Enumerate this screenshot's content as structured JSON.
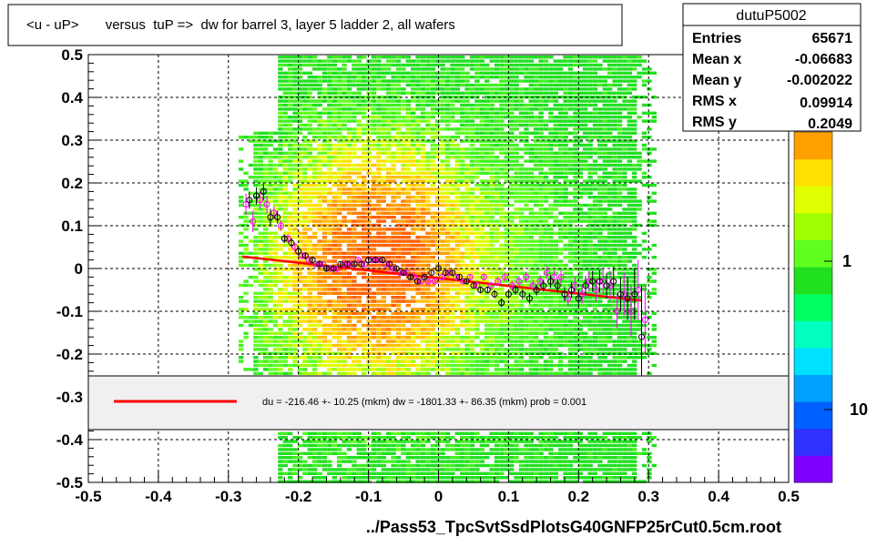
{
  "chart_data": {
    "type": "scatter",
    "title": "<u - uP>       versus  tuP =>  dw for barrel 3, layer 5 ladder 2, all wafers",
    "xlabel": "../Pass53_TpcSvtSsdPlotsG40GNFP25rCut0.5cm.root",
    "ylabel": "",
    "xlim": [
      -0.5,
      0.5
    ],
    "ylim": [
      -0.5,
      0.5
    ],
    "x_ticks": [
      "-0.5",
      "-0.4",
      "-0.3",
      "-0.2",
      "-0.1",
      "0",
      "0.1",
      "0.2",
      "0.3",
      "0.4",
      "0.5"
    ],
    "y_ticks": [
      "-0.5",
      "-0.4",
      "-0.3",
      "-0.2",
      "-0.1",
      "0",
      "0.1",
      "0.2",
      "0.3",
      "0.4",
      "0.5"
    ],
    "grid": true,
    "colorbar": {
      "scale": "log",
      "tick_labels": [
        "1",
        "10"
      ],
      "colors": [
        "#8000ff",
        "#3030ff",
        "#0060ff",
        "#00a0ff",
        "#00e0ff",
        "#00ffc0",
        "#00ff60",
        "#20e020",
        "#60ff20",
        "#a0ff00",
        "#e0ff00",
        "#ffe000",
        "#ffa000"
      ]
    },
    "stats": {
      "name": "dutuP5002",
      "rows": [
        {
          "label": "Entries",
          "value": "65671"
        },
        {
          "label": "Mean x",
          "value": "-0.06683"
        },
        {
          "label": "Mean y",
          "value": "-0.002022"
        },
        {
          "label": "RMS x",
          "value": "0.09914"
        },
        {
          "label": "RMS y",
          "value": "0.2049"
        }
      ]
    },
    "legend": {
      "text": "du = -216.46 +- 10.25 (mkm) dw = -1801.33 +- 86.35 (mkm) prob = 0.001",
      "line_color": "#ff0000"
    },
    "fit_line": {
      "x": [
        -0.28,
        0.29
      ],
      "y": [
        0.028,
        -0.075
      ],
      "color": "#ff0000"
    },
    "profile_black": {
      "x": [
        -0.27,
        -0.26,
        -0.25,
        -0.24,
        -0.23,
        -0.22,
        -0.21,
        -0.2,
        -0.19,
        -0.18,
        -0.17,
        -0.16,
        -0.15,
        -0.14,
        -0.13,
        -0.12,
        -0.11,
        -0.1,
        -0.09,
        -0.08,
        -0.07,
        -0.06,
        -0.05,
        -0.04,
        -0.03,
        -0.02,
        -0.01,
        0.0,
        0.01,
        0.02,
        0.03,
        0.04,
        0.05,
        0.06,
        0.07,
        0.08,
        0.09,
        0.1,
        0.11,
        0.12,
        0.13,
        0.14,
        0.15,
        0.16,
        0.17,
        0.18,
        0.19,
        0.2,
        0.21,
        0.22,
        0.23,
        0.24,
        0.25,
        0.26,
        0.27,
        0.28,
        0.29
      ],
      "y": [
        0.16,
        0.17,
        0.18,
        0.12,
        0.12,
        0.07,
        0.06,
        0.04,
        0.03,
        0.02,
        0.01,
        0.0,
        0.0,
        0.01,
        0.01,
        0.01,
        0.01,
        0.02,
        0.02,
        0.02,
        0.01,
        0.0,
        -0.01,
        -0.02,
        -0.03,
        -0.02,
        -0.01,
        0.0,
        -0.01,
        -0.01,
        -0.02,
        -0.03,
        -0.04,
        -0.05,
        -0.05,
        -0.06,
        -0.08,
        -0.06,
        -0.05,
        -0.06,
        -0.07,
        -0.05,
        -0.04,
        -0.03,
        -0.04,
        -0.06,
        -0.05,
        -0.07,
        -0.04,
        -0.03,
        -0.03,
        -0.04,
        -0.03,
        -0.06,
        -0.07,
        -0.06,
        -0.16
      ],
      "err": [
        0.02,
        0.02,
        0.02,
        0.02,
        0.015,
        0.01,
        0.01,
        0.01,
        0.008,
        0.008,
        0.006,
        0.006,
        0.005,
        0.005,
        0.005,
        0.005,
        0.005,
        0.005,
        0.005,
        0.005,
        0.005,
        0.005,
        0.005,
        0.005,
        0.005,
        0.005,
        0.005,
        0.006,
        0.006,
        0.006,
        0.006,
        0.007,
        0.007,
        0.008,
        0.008,
        0.009,
        0.01,
        0.01,
        0.011,
        0.012,
        0.012,
        0.013,
        0.014,
        0.015,
        0.016,
        0.017,
        0.018,
        0.02,
        0.022,
        0.024,
        0.026,
        0.03,
        0.035,
        0.04,
        0.05,
        0.06,
        0.12
      ]
    },
    "profile_pink": {
      "x": [
        -0.275,
        -0.265,
        -0.255,
        -0.245,
        -0.235,
        -0.225,
        -0.215,
        -0.205,
        -0.195,
        -0.185,
        -0.175,
        -0.165,
        -0.155,
        -0.145,
        -0.135,
        -0.125,
        -0.115,
        -0.105,
        -0.095,
        -0.085,
        -0.075,
        -0.065,
        -0.055,
        -0.045,
        -0.035,
        -0.025,
        -0.015,
        -0.005,
        0.005,
        0.015,
        0.025,
        0.035,
        0.045,
        0.055,
        0.065,
        0.075,
        0.085,
        0.095,
        0.105,
        0.115,
        0.125,
        0.135,
        0.145,
        0.155,
        0.165,
        0.175,
        0.185,
        0.195,
        0.205,
        0.215,
        0.225,
        0.235,
        0.245,
        0.255,
        0.265,
        0.275,
        0.285,
        0.295
      ],
      "y": [
        0.15,
        0.11,
        0.16,
        0.15,
        0.13,
        0.1,
        0.07,
        0.05,
        0.03,
        0.02,
        0.01,
        0.01,
        0.0,
        0.0,
        0.01,
        0.01,
        0.02,
        0.01,
        0.02,
        0.02,
        0.01,
        0.0,
        -0.01,
        -0.01,
        -0.02,
        -0.03,
        -0.03,
        -0.03,
        -0.02,
        -0.01,
        -0.02,
        -0.03,
        -0.02,
        -0.04,
        -0.02,
        -0.04,
        -0.03,
        -0.02,
        -0.04,
        -0.03,
        -0.02,
        -0.04,
        -0.03,
        -0.01,
        -0.02,
        -0.02,
        -0.07,
        -0.04,
        -0.06,
        -0.03,
        -0.05,
        -0.03,
        -0.04,
        -0.1,
        -0.06,
        -0.1,
        -0.05,
        -0.12
      ],
      "err": [
        0.025,
        0.025,
        0.02,
        0.02,
        0.015,
        0.012,
        0.01,
        0.01,
        0.008,
        0.008,
        0.006,
        0.006,
        0.005,
        0.005,
        0.005,
        0.005,
        0.005,
        0.005,
        0.005,
        0.005,
        0.005,
        0.005,
        0.005,
        0.005,
        0.005,
        0.005,
        0.005,
        0.006,
        0.006,
        0.006,
        0.006,
        0.007,
        0.007,
        0.008,
        0.008,
        0.009,
        0.01,
        0.01,
        0.011,
        0.012,
        0.012,
        0.013,
        0.014,
        0.015,
        0.016,
        0.017,
        0.018,
        0.02,
        0.022,
        0.024,
        0.026,
        0.03,
        0.035,
        0.04,
        0.05,
        0.06,
        0.07,
        0.08
      ]
    }
  }
}
